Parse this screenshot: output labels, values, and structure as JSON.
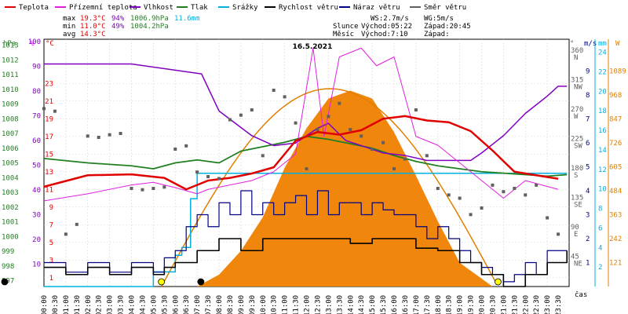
{
  "chart_data": {
    "type": "line",
    "title": "16.5.2021",
    "legend": [
      {
        "name": "Teplota",
        "color": "#e00000"
      },
      {
        "name": "Přízemní teplota",
        "color": "#e020e0"
      },
      {
        "name": "Vlhkost",
        "color": "#8000c0"
      },
      {
        "name": "Tlak",
        "color": "#208020"
      },
      {
        "name": "Srážky",
        "color": "#00b0e0"
      },
      {
        "name": "Rychlost větru",
        "color": "#000000"
      },
      {
        "name": "Náraz větru",
        "color": "#000080"
      },
      {
        "name": "Směr větru",
        "color": "#606060"
      }
    ],
    "stats": {
      "max": {
        "label": "max",
        "temp": "19.3°C",
        "hum": "94%",
        "pres": "1006.9hPa",
        "rain": "11.6mm"
      },
      "min": {
        "label": "min",
        "temp": "11.0°C",
        "hum": "49%",
        "pres": "1004.2hPa"
      },
      "avg": {
        "label": "avg",
        "temp": "14.3°C"
      }
    },
    "info": {
      "ws": "WS:2.7m/s",
      "wg": "WG:5m/s",
      "slunce": "Slunce",
      "slunce_vychod": "Východ:05:22",
      "slunce_zapad": "Západ:20:45",
      "mesic": "Měsíc",
      "mesic_vychod": "Východ:7:10",
      "mesic_zapad": "Západ:"
    },
    "axes": {
      "hpa": {
        "label": "hPa",
        "ticks": [
          "1013",
          "1012",
          "1011",
          "1010",
          "1009",
          "1008",
          "1007",
          "1006",
          "1005",
          "1004",
          "1003",
          "1002",
          "1001",
          "1000",
          "999",
          "998",
          "997"
        ],
        "range": [
          997,
          1013
        ]
      },
      "pct": {
        "label": "%",
        "ticks": [
          "100",
          "90",
          "80",
          "70",
          "60",
          "50",
          "40",
          "30",
          "20",
          "10"
        ],
        "range": [
          10,
          100
        ]
      },
      "temp": {
        "label": "°C",
        "ticks": [
          "23",
          "21",
          "19",
          "17",
          "15",
          "13",
          "11",
          "9",
          "7",
          "5",
          "3",
          "1"
        ],
        "range": [
          1,
          23
        ]
      },
      "deg": {
        "label": "°",
        "ticks": [
          "360",
          "315",
          "270",
          "225",
          "180",
          "135",
          "90",
          "45"
        ],
        "dirs": [
          "N",
          "NW",
          "W",
          "SW",
          "S",
          "SE",
          "E",
          "NE"
        ]
      },
      "ms": {
        "label": "m/s",
        "ticks": [
          "9",
          "8",
          "7",
          "6",
          "5",
          "4",
          "3",
          "2",
          "1"
        ],
        "range": [
          0,
          10
        ]
      },
      "mm": {
        "label": "mm",
        "ticks": [
          "24",
          "22",
          "20",
          "18",
          "16",
          "14",
          "12",
          "10",
          "8",
          "6",
          "4",
          "2"
        ],
        "range": [
          0,
          25
        ]
      },
      "wm2": {
        "label": "W",
        "ticks": [
          "1089",
          "968",
          "847",
          "726",
          "605",
          "484",
          "363",
          "242",
          "121"
        ],
        "range": [
          0,
          1210
        ]
      },
      "x_label": "čas",
      "x_ticks": [
        "00:00",
        "00:30",
        "01:00",
        "01:30",
        "02:00",
        "02:30",
        "03:00",
        "03:30",
        "04:00",
        "04:30",
        "05:00",
        "05:30",
        "06:00",
        "06:30",
        "07:00",
        "07:30",
        "08:00",
        "08:30",
        "09:00",
        "09:30",
        "10:00",
        "10:30",
        "11:00",
        "11:30",
        "12:00",
        "12:30",
        "13:00",
        "13:30",
        "14:00",
        "14:30",
        "15:00",
        "15:30",
        "16:00",
        "16:30",
        "17:00",
        "17:30",
        "18:00",
        "18:30",
        "19:00",
        "19:30",
        "20:00",
        "20:30",
        "21:00",
        "21:30",
        "22:00",
        "22:30",
        "23:00",
        "23:30"
      ]
    },
    "series": {
      "temperature": {
        "x": [
          0,
          2,
          4,
          5.5,
          6.5,
          7.5,
          8.5,
          9.5,
          10.5,
          11.5,
          12.5,
          13.5,
          14.5,
          15.5,
          16.5,
          17.5,
          18.5,
          19.5,
          20.5,
          21.5,
          22.5,
          23.5
        ],
        "y": [
          11.3,
          12.6,
          12.7,
          12.3,
          11.0,
          12.0,
          12.3,
          12.8,
          13.5,
          16.5,
          17.5,
          17.2,
          17.7,
          19.0,
          19.3,
          18.8,
          18.6,
          17.6,
          15.4,
          13.0,
          12.6,
          12.2
        ]
      },
      "ground_temp": {
        "x": [
          0,
          2,
          4,
          5,
          6,
          7,
          7.5,
          8.5,
          9.5,
          10.5,
          11.5,
          12.3,
          12.8,
          13.5,
          14.5,
          15.2,
          16,
          17,
          18,
          19,
          20,
          21,
          22,
          23.5
        ],
        "y": [
          9.7,
          10.5,
          11.5,
          11.8,
          11.2,
          10.5,
          11.0,
          11.5,
          12.0,
          13.0,
          15.0,
          27.0,
          17.0,
          26.0,
          27.0,
          25.0,
          26.0,
          17.0,
          16.0,
          14.0,
          12.0,
          10.0,
          12.0,
          11.0
        ]
      },
      "humidity": {
        "x": [
          0,
          4,
          7.2,
          8,
          9.5,
          10.5,
          11.5,
          12.5,
          13,
          13.8,
          14.5,
          15.5,
          16.5,
          17.5,
          18.5,
          19.5,
          20,
          21,
          22,
          23,
          23.5,
          23.9
        ],
        "y": [
          91,
          91,
          87,
          72,
          62,
          58,
          59,
          65,
          67,
          60,
          58,
          55,
          54,
          52,
          52,
          52,
          55,
          62,
          71,
          78,
          82,
          82
        ]
      },
      "pressure": {
        "x": [
          0,
          2,
          4,
          5,
          6,
          7,
          8,
          9,
          10,
          11,
          12,
          13,
          14,
          15,
          16,
          17,
          18,
          19,
          20,
          21,
          22,
          23,
          23.9
        ],
        "y": [
          1005.3,
          1005.0,
          1004.8,
          1004.6,
          1005.0,
          1005.2,
          1005.0,
          1005.8,
          1006.1,
          1006.4,
          1006.8,
          1006.6,
          1006.3,
          1006.0,
          1005.5,
          1005.1,
          1004.8,
          1004.6,
          1004.4,
          1004.3,
          1004.2,
          1004.1,
          1004.2
        ]
      },
      "rain": {
        "x": [
          0,
          4.8,
          5.0,
          5.9,
          6.0,
          6.3,
          6.7,
          7.0,
          7.5,
          23.9
        ],
        "y": [
          0,
          0,
          1.5,
          1.5,
          3.2,
          4.0,
          9.0,
          11.6,
          11.6,
          11.6
        ]
      },
      "wind_speed": {
        "x": [
          0,
          1,
          2,
          3,
          4,
          5,
          5.5,
          6,
          7,
          8,
          9,
          10,
          11,
          12,
          13,
          14,
          15,
          16,
          17,
          18,
          19,
          20,
          21,
          22,
          23,
          23.9
        ],
        "y": [
          0.8,
          0.5,
          0.8,
          0.5,
          0.8,
          0.5,
          0.8,
          1.0,
          1.5,
          2.0,
          1.5,
          2.0,
          2.0,
          2.0,
          2.0,
          1.8,
          2.0,
          2.0,
          1.6,
          1.5,
          1.0,
          0.5,
          0,
          0.5,
          1.0,
          1.5
        ]
      },
      "wind_gust": {
        "x": [
          0,
          1,
          2,
          3,
          4,
          5,
          5.5,
          6,
          6.5,
          7,
          7.5,
          8,
          8.5,
          9,
          9.5,
          10,
          10.5,
          11,
          11.5,
          12,
          12.5,
          13,
          13.5,
          14,
          14.5,
          15,
          15.5,
          16,
          16.5,
          17,
          17.5,
          18,
          18.5,
          19,
          19.5,
          20,
          20.5,
          21,
          21.5,
          22,
          22.5,
          23,
          23.9
        ],
        "y": [
          1.0,
          0.6,
          1.0,
          0.6,
          1.0,
          0.6,
          1.2,
          1.5,
          2.5,
          3.0,
          2.5,
          3.5,
          3.0,
          4.0,
          3.0,
          3.5,
          3.0,
          3.5,
          3.8,
          3.0,
          4.0,
          3.0,
          3.5,
          3.5,
          3.0,
          3.5,
          3.2,
          3.0,
          3.0,
          2.5,
          2.0,
          2.5,
          2.0,
          1.5,
          1.0,
          0.8,
          0.5,
          0.2,
          0.5,
          1.0,
          0.5,
          1.5,
          1.5
        ]
      },
      "wind_dir": {
        "x": [
          0,
          0.5,
          1,
          1.5,
          2,
          2.5,
          3,
          3.5,
          4,
          4.5,
          5,
          5.5,
          6,
          6.5,
          7,
          7.5,
          8,
          8.5,
          9,
          9.5,
          10,
          10.5,
          11,
          11.5,
          12,
          12.5,
          13,
          13.5,
          14,
          14.5,
          15,
          15.5,
          16,
          16.5,
          17,
          17.5,
          18,
          18.5,
          19,
          19.5,
          20,
          20.5,
          21,
          21.5,
          22,
          22.5,
          23,
          23.5
        ],
        "y": [
          272,
          268,
          80,
          95,
          230,
          228,
          232,
          234,
          150,
          148,
          150,
          152,
          210,
          215,
          175,
          168,
          165,
          255,
          262,
          270,
          200,
          300,
          290,
          250,
          180,
          240,
          260,
          280,
          240,
          230,
          210,
          220,
          180,
          195,
          270,
          200,
          150,
          140,
          135,
          110,
          120,
          155,
          145,
          150,
          140,
          155,
          105,
          80
        ]
      },
      "solar": {
        "x": [
          7.0,
          8,
          9,
          10,
          11,
          12,
          13,
          14,
          15,
          16,
          17,
          18,
          19,
          20.5
        ],
        "y": [
          0,
          60,
          180,
          350,
          600,
          800,
          950,
          990,
          950,
          780,
          560,
          330,
          120,
          0
        ]
      }
    },
    "sunrise_hour": 5.37,
    "sunset_hour": 20.75,
    "moonrise_hour": 7.17
  }
}
